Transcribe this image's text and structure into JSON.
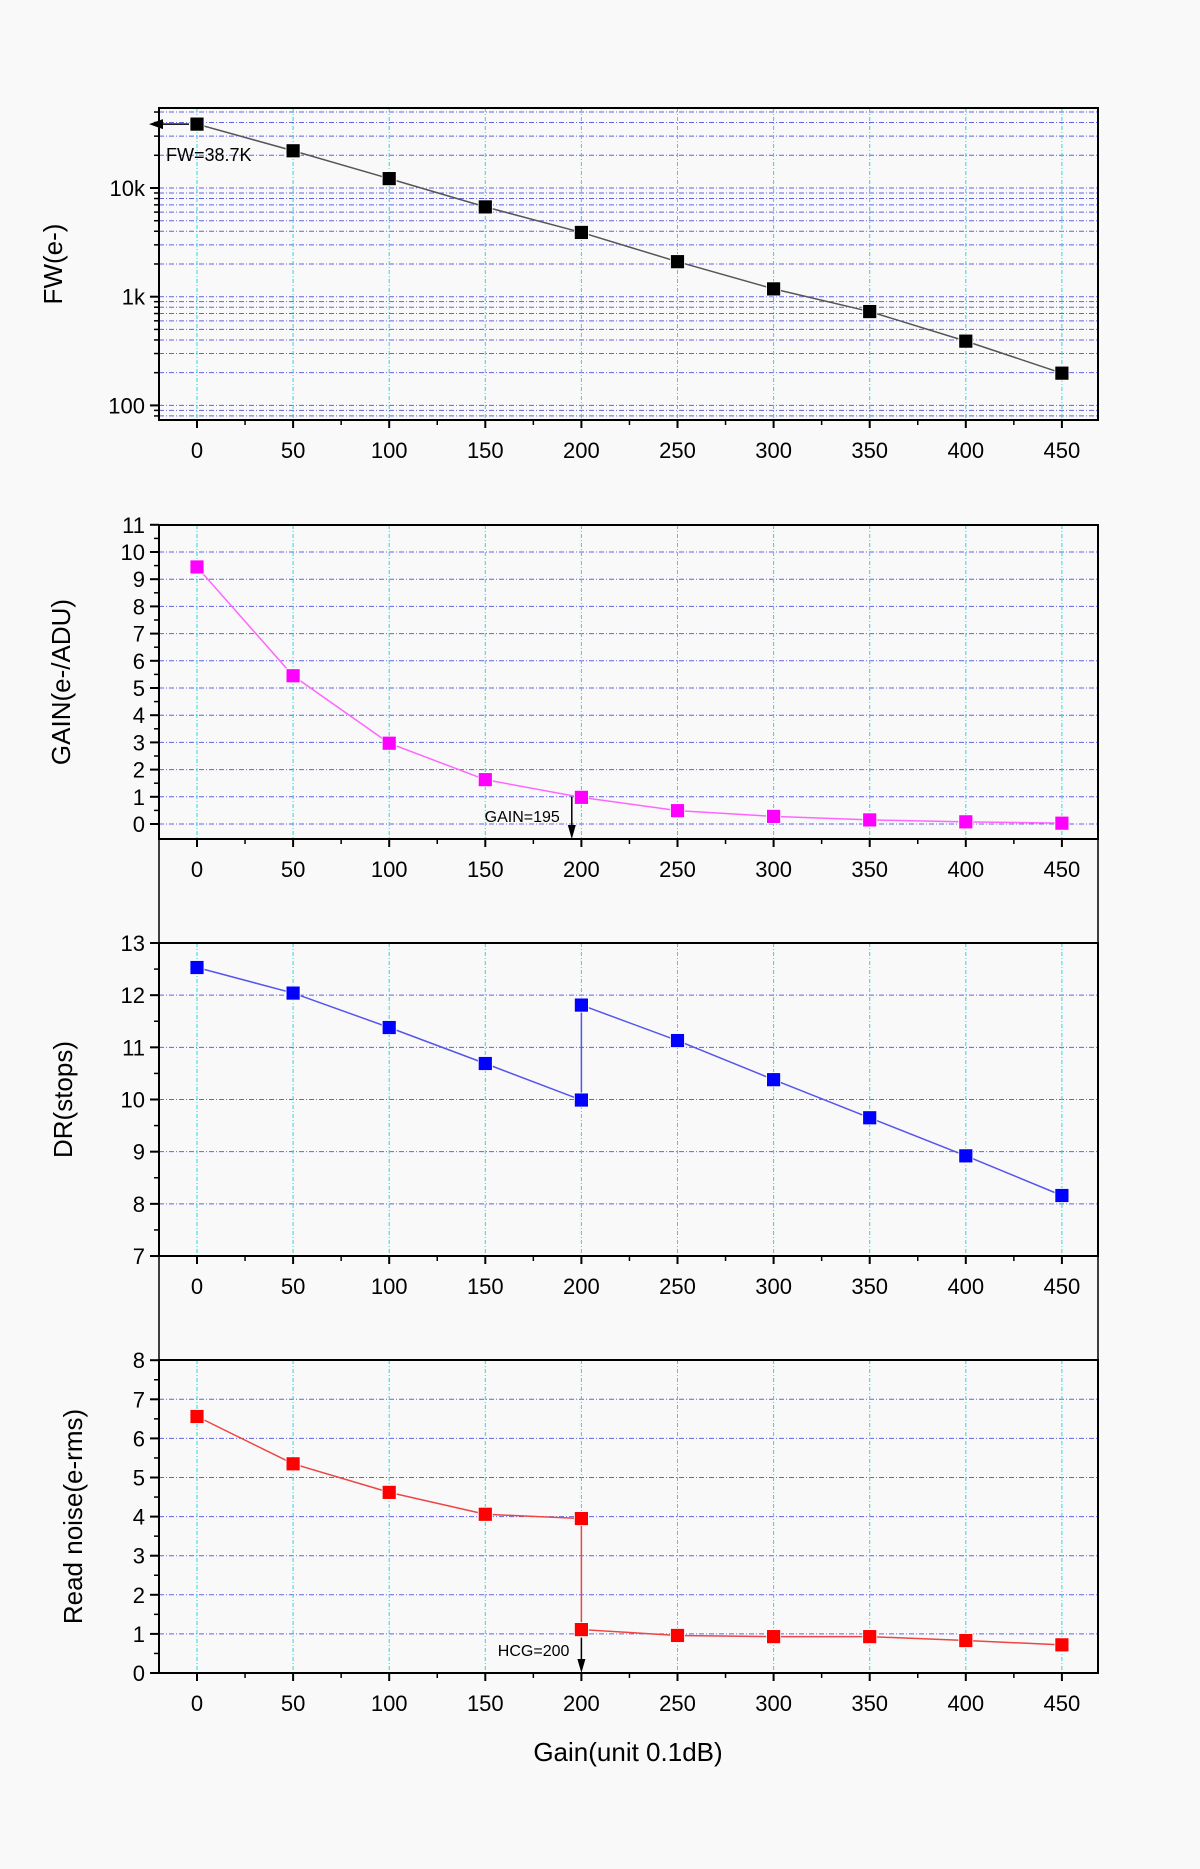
{
  "figure": {
    "shared_xlabel": "Gain(unit 0.1dB)"
  },
  "chart_data": [
    {
      "type": "line",
      "id": "fw",
      "title": "",
      "xlabel": "",
      "ylabel": "FW(e-)",
      "yscale": "log",
      "xlim": [
        -20,
        470
      ],
      "ylim": [
        73,
        54000
      ],
      "x_ticks": [
        0,
        50,
        100,
        150,
        200,
        250,
        300,
        350,
        400,
        450
      ],
      "y_ticks": [
        100,
        1000,
        10000
      ],
      "y_tick_labels": [
        "100",
        "1k",
        "10k"
      ],
      "grid": true,
      "marker_color": "#000000",
      "line_color": "#555555",
      "series": [
        {
          "name": "FW",
          "x": [
            0,
            50,
            100,
            150,
            200,
            250,
            300,
            350,
            400,
            450
          ],
          "y": [
            38700,
            22000,
            12200,
            6700,
            3900,
            2100,
            1180,
            730,
            390,
            198
          ]
        }
      ],
      "annotations": [
        {
          "text": "FW=38.7K",
          "x": 0,
          "y": 38700,
          "arrow": "left-to-axis"
        }
      ]
    },
    {
      "type": "line",
      "id": "gain",
      "title": "",
      "xlabel": "",
      "ylabel": "GAIN(e-/ADU)",
      "yscale": "linear",
      "xlim": [
        -20,
        470
      ],
      "ylim": [
        -0.5,
        11
      ],
      "x_ticks": [
        0,
        50,
        100,
        150,
        200,
        250,
        300,
        350,
        400,
        450
      ],
      "y_ticks": [
        0,
        1,
        2,
        3,
        4,
        5,
        6,
        7,
        8,
        9,
        10,
        11
      ],
      "grid": true,
      "marker_color": "#ff00ff",
      "line_color": "#ff66ff",
      "series": [
        {
          "name": "GAIN",
          "x": [
            0,
            50,
            100,
            150,
            200,
            250,
            300,
            350,
            400,
            450
          ],
          "y": [
            9.45,
            5.45,
            2.97,
            1.63,
            0.98,
            0.49,
            0.28,
            0.15,
            0.08,
            0.03
          ]
        }
      ],
      "annotations": [
        {
          "text": "GAIN=195",
          "x": 195,
          "y": 1,
          "arrow": "down-to-axis"
        }
      ]
    },
    {
      "type": "line",
      "id": "dr",
      "title": "",
      "xlabel": "",
      "ylabel": "DR(stops)",
      "yscale": "linear",
      "xlim": [
        -20,
        470
      ],
      "ylim": [
        7,
        13
      ],
      "x_ticks": [
        0,
        50,
        100,
        150,
        200,
        250,
        300,
        350,
        400,
        450
      ],
      "y_ticks": [
        7,
        8,
        9,
        10,
        11,
        12,
        13
      ],
      "grid": true,
      "marker_color": "#0000ff",
      "line_color": "#5555ee",
      "series": [
        {
          "name": "DR",
          "x": [
            0,
            50,
            100,
            150,
            200,
            200,
            250,
            300,
            350,
            400,
            450
          ],
          "y": [
            12.53,
            12.04,
            11.38,
            10.69,
            9.99,
            11.81,
            11.13,
            10.38,
            9.65,
            8.92,
            8.16
          ]
        }
      ],
      "annotations": []
    },
    {
      "type": "line",
      "id": "noise",
      "title": "",
      "xlabel": "Gain(unit 0.1dB)",
      "ylabel": "Read noise(e-rms)",
      "yscale": "linear",
      "xlim": [
        -20,
        470
      ],
      "ylim": [
        0,
        8
      ],
      "x_ticks": [
        0,
        50,
        100,
        150,
        200,
        250,
        300,
        350,
        400,
        450
      ],
      "y_ticks": [
        0,
        1,
        2,
        3,
        4,
        5,
        6,
        7,
        8
      ],
      "grid": true,
      "marker_color": "#ff0000",
      "line_color": "#ee4444",
      "series": [
        {
          "name": "Read noise",
          "x": [
            0,
            50,
            100,
            150,
            200,
            200,
            250,
            300,
            350,
            400,
            450
          ],
          "y": [
            6.56,
            5.35,
            4.62,
            4.06,
            3.95,
            1.11,
            0.96,
            0.93,
            0.93,
            0.83,
            0.72
          ]
        }
      ],
      "annotations": [
        {
          "text": "HCG=200",
          "x": 200,
          "y": 1.11,
          "arrow": "down-to-axis"
        }
      ]
    }
  ]
}
